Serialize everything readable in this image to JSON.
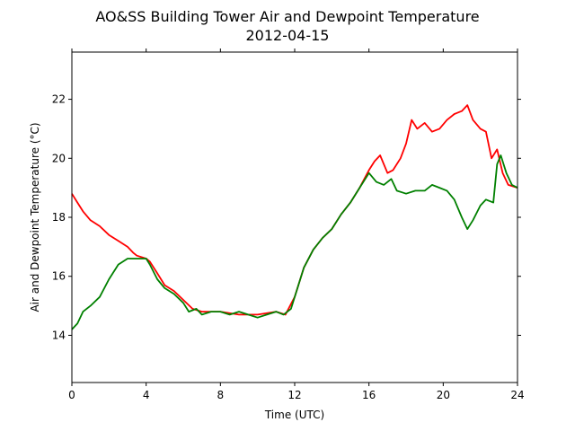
{
  "chart_data": {
    "type": "line",
    "title": "AO&SS Building Tower Air and Dewpoint Temperature",
    "subtitle": "2012-04-15",
    "xlabel": "Time (UTC)",
    "ylabel": "Air and Dewpoint Temperature (°C)",
    "xlim": [
      0,
      24
    ],
    "ylim": [
      12.4,
      23.6
    ],
    "xticks": [
      0,
      4,
      8,
      12,
      16,
      20,
      24
    ],
    "yticks": [
      14,
      16,
      18,
      20,
      22
    ],
    "grid": false,
    "legend": "none",
    "series": [
      {
        "color": "#ff0000",
        "points": [
          [
            0,
            18.8
          ],
          [
            0.3,
            18.5
          ],
          [
            0.6,
            18.2
          ],
          [
            1.0,
            17.9
          ],
          [
            1.5,
            17.7
          ],
          [
            2.0,
            17.4
          ],
          [
            2.5,
            17.2
          ],
          [
            3.0,
            17.0
          ],
          [
            3.3,
            16.8
          ],
          [
            3.5,
            16.7
          ],
          [
            4.0,
            16.6
          ],
          [
            4.2,
            16.5
          ],
          [
            4.6,
            16.1
          ],
          [
            5.0,
            15.7
          ],
          [
            5.5,
            15.5
          ],
          [
            6.0,
            15.2
          ],
          [
            6.5,
            14.9
          ],
          [
            7.0,
            14.8
          ],
          [
            8.0,
            14.8
          ],
          [
            9.0,
            14.7
          ],
          [
            10.0,
            14.7
          ],
          [
            11.0,
            14.8
          ],
          [
            11.5,
            14.7
          ],
          [
            12.0,
            15.3
          ],
          [
            12.5,
            16.3
          ],
          [
            13.0,
            16.9
          ],
          [
            13.5,
            17.3
          ],
          [
            14.0,
            17.6
          ],
          [
            14.5,
            18.1
          ],
          [
            15.0,
            18.5
          ],
          [
            15.5,
            19.0
          ],
          [
            16.0,
            19.6
          ],
          [
            16.3,
            19.9
          ],
          [
            16.6,
            20.1
          ],
          [
            17.0,
            19.5
          ],
          [
            17.3,
            19.6
          ],
          [
            17.7,
            20.0
          ],
          [
            18.0,
            20.5
          ],
          [
            18.3,
            21.3
          ],
          [
            18.6,
            21.0
          ],
          [
            19.0,
            21.2
          ],
          [
            19.4,
            20.9
          ],
          [
            19.8,
            21.0
          ],
          [
            20.2,
            21.3
          ],
          [
            20.6,
            21.5
          ],
          [
            21.0,
            21.6
          ],
          [
            21.3,
            21.8
          ],
          [
            21.6,
            21.3
          ],
          [
            22.0,
            21.0
          ],
          [
            22.3,
            20.9
          ],
          [
            22.6,
            20.0
          ],
          [
            22.9,
            20.3
          ],
          [
            23.2,
            19.5
          ],
          [
            23.5,
            19.1
          ],
          [
            24.0,
            19.0
          ]
        ]
      },
      {
        "color": "#008000",
        "points": [
          [
            0,
            14.2
          ],
          [
            0.3,
            14.4
          ],
          [
            0.6,
            14.8
          ],
          [
            1.0,
            15.0
          ],
          [
            1.5,
            15.3
          ],
          [
            2.0,
            15.9
          ],
          [
            2.5,
            16.4
          ],
          [
            3.0,
            16.6
          ],
          [
            3.5,
            16.6
          ],
          [
            4.0,
            16.6
          ],
          [
            4.2,
            16.4
          ],
          [
            4.6,
            15.9
          ],
          [
            5.0,
            15.6
          ],
          [
            5.5,
            15.4
          ],
          [
            6.0,
            15.1
          ],
          [
            6.3,
            14.8
          ],
          [
            6.7,
            14.9
          ],
          [
            7.0,
            14.7
          ],
          [
            7.5,
            14.8
          ],
          [
            8.0,
            14.8
          ],
          [
            8.5,
            14.7
          ],
          [
            9.0,
            14.8
          ],
          [
            9.5,
            14.7
          ],
          [
            10.0,
            14.6
          ],
          [
            10.5,
            14.7
          ],
          [
            11.0,
            14.8
          ],
          [
            11.4,
            14.7
          ],
          [
            11.8,
            14.9
          ],
          [
            12.1,
            15.5
          ],
          [
            12.5,
            16.3
          ],
          [
            13.0,
            16.9
          ],
          [
            13.5,
            17.3
          ],
          [
            14.0,
            17.6
          ],
          [
            14.5,
            18.1
          ],
          [
            15.0,
            18.5
          ],
          [
            15.5,
            19.0
          ],
          [
            16.0,
            19.5
          ],
          [
            16.4,
            19.2
          ],
          [
            16.8,
            19.1
          ],
          [
            17.2,
            19.3
          ],
          [
            17.5,
            18.9
          ],
          [
            18.0,
            18.8
          ],
          [
            18.5,
            18.9
          ],
          [
            19.0,
            18.9
          ],
          [
            19.4,
            19.1
          ],
          [
            19.8,
            19.0
          ],
          [
            20.2,
            18.9
          ],
          [
            20.6,
            18.6
          ],
          [
            21.0,
            18.0
          ],
          [
            21.3,
            17.6
          ],
          [
            21.6,
            17.9
          ],
          [
            22.0,
            18.4
          ],
          [
            22.3,
            18.6
          ],
          [
            22.7,
            18.5
          ],
          [
            22.9,
            19.8
          ],
          [
            23.1,
            20.1
          ],
          [
            23.4,
            19.5
          ],
          [
            23.7,
            19.1
          ],
          [
            24.0,
            19.0
          ]
        ]
      }
    ]
  }
}
